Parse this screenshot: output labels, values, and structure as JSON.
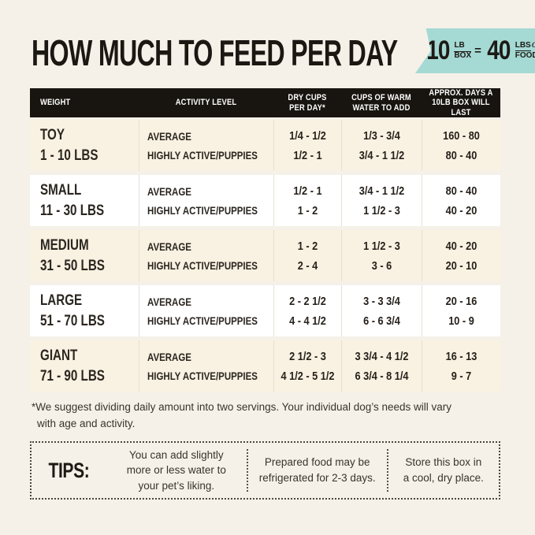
{
  "colors": {
    "page_background": "#f5f1e8",
    "badge_teal": "#a5d9d4",
    "header_black": "#181510",
    "row_cream": "#f9f1e1",
    "row_white": "#ffffff"
  },
  "header": {
    "title": "HOW MUCH TO FEED PER DAY",
    "badge": {
      "qty1": "10",
      "unit1_top": "LB",
      "unit1_bottom": "BOX",
      "equals": "=",
      "qty2": "40",
      "unit2_top": "LBS",
      "unit2_script": "of",
      "unit2_bottom": "FOOD!"
    }
  },
  "table": {
    "columns": [
      {
        "line1": "WEIGHT"
      },
      {
        "line1": "ACTIVITY LEVEL"
      },
      {
        "line1": "DRY CUPS",
        "line2": "PER DAY*"
      },
      {
        "line1": "CUPS OF WARM",
        "line2": "WATER TO ADD"
      },
      {
        "line1": "APPROX. DAYS A",
        "line2": "10LB BOX WILL LAST"
      }
    ],
    "rows": [
      {
        "size": "TOY",
        "range": "1 - 10 LBS",
        "activity": [
          "AVERAGE",
          "HIGHLY ACTIVE/PUPPIES"
        ],
        "dry_cups": [
          "1/4 - 1/2",
          "1/2 - 1"
        ],
        "water": [
          "1/3 - 3/4",
          "3/4 - 1 1/2"
        ],
        "days": [
          "160 - 80",
          "80 - 40"
        ]
      },
      {
        "size": "SMALL",
        "range": "11 - 30 LBS",
        "activity": [
          "AVERAGE",
          "HIGHLY ACTIVE/PUPPIES"
        ],
        "dry_cups": [
          "1/2 - 1",
          "1 - 2"
        ],
        "water": [
          "3/4 - 1 1/2",
          "1 1/2 - 3"
        ],
        "days": [
          "80 - 40",
          "40 - 20"
        ]
      },
      {
        "size": "MEDIUM",
        "range": "31 - 50 LBS",
        "activity": [
          "AVERAGE",
          "HIGHLY ACTIVE/PUPPIES"
        ],
        "dry_cups": [
          "1 - 2",
          "2 - 4"
        ],
        "water": [
          "1 1/2 - 3",
          "3 - 6"
        ],
        "days": [
          "40 - 20",
          "20 - 10"
        ]
      },
      {
        "size": "LARGE",
        "range": "51 - 70 LBS",
        "activity": [
          "AVERAGE",
          "HIGHLY ACTIVE/PUPPIES"
        ],
        "dry_cups": [
          "2 - 2 1/2",
          "4 - 4 1/2"
        ],
        "water": [
          "3 - 3 3/4",
          "6 - 6 3/4"
        ],
        "days": [
          "20 - 16",
          "10 - 9"
        ]
      },
      {
        "size": "GIANT",
        "range": "71 - 90 LBS",
        "activity": [
          "AVERAGE",
          "HIGHLY ACTIVE/PUPPIES"
        ],
        "dry_cups": [
          "2 1/2 - 3",
          "4 1/2 - 5 1/2"
        ],
        "water": [
          "3 3/4 - 4 1/2",
          "6 3/4 - 8 1/4"
        ],
        "days": [
          "16 - 13",
          "9 - 7"
        ]
      }
    ]
  },
  "footnote": {
    "line1": "*We suggest dividing daily amount into two servings. Your individual dog’s needs will vary",
    "line2": "with age and activity."
  },
  "tips": {
    "label": "TIPS:",
    "items": [
      {
        "line1": "You can add slightly",
        "line2": "more or less water to",
        "line3": "your pet’s liking."
      },
      {
        "line1": "Prepared food may be",
        "line2": "refrigerated for 2-3 days."
      },
      {
        "line1": "Store this box in",
        "line2": "a cool, dry place."
      }
    ]
  }
}
